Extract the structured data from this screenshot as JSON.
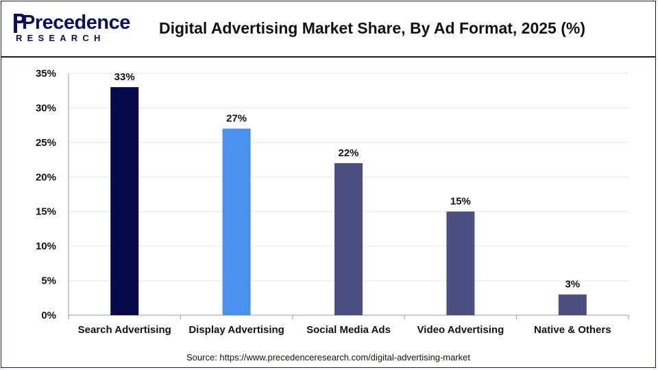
{
  "brand": {
    "logo_text": "Precedence",
    "logo_sub": "RESEARCH"
  },
  "colors": {
    "border": "#1b1b3a",
    "logo": "#0a0f5a",
    "grid": "#e6e6e6"
  },
  "chart_data": {
    "type": "bar",
    "title": "Digital Advertising Market Share, By Ad Format, 2025 (%)",
    "xlabel": "",
    "ylabel": "",
    "categories": [
      "Search Advertising",
      "Display Advertising",
      "Social Media Ads",
      "Video Advertising",
      "Native & Others"
    ],
    "values": [
      33,
      27,
      22,
      15,
      3
    ],
    "value_labels": [
      "33%",
      "27%",
      "22%",
      "15%",
      "3%"
    ],
    "bar_colors": [
      "#070a4a",
      "#4a90ee",
      "#4b4f82",
      "#4b4f82",
      "#4b4f82"
    ],
    "ylim": [
      0,
      35
    ],
    "yticks": [
      0,
      5,
      10,
      15,
      20,
      25,
      30,
      35
    ],
    "ytick_labels": [
      "0%",
      "5%",
      "10%",
      "15%",
      "20%",
      "25%",
      "30%",
      "35%"
    ],
    "grid": true,
    "legend": "none"
  },
  "source": "Source: https://www.precedenceresearch.com/digital-advertising-market"
}
